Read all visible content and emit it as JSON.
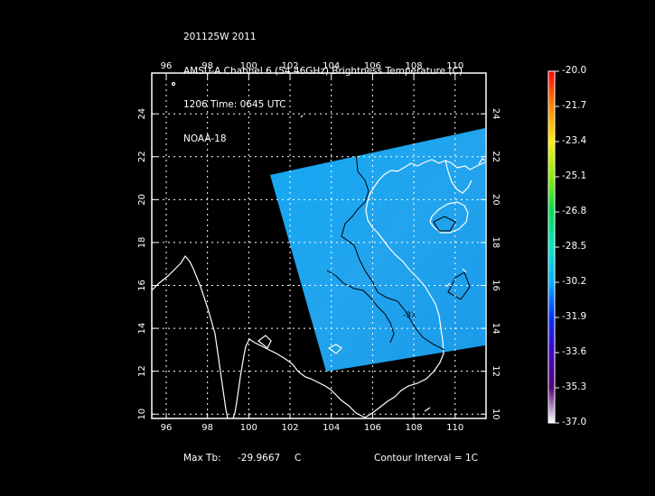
{
  "header": {
    "line1": "201125W 2011",
    "line2": "AMSU-A Channel 6 (54.46GHz) Brightness Temperature (C)",
    "line3": "1206 Time: 0645 UTC",
    "line4": "NOAA-18"
  },
  "map": {
    "lon_ticks": [
      "96",
      "98",
      "100",
      "102",
      "104",
      "106",
      "108",
      "110"
    ],
    "lat_ticks": [
      "24",
      "22",
      "20",
      "18",
      "16",
      "14",
      "12",
      "10"
    ],
    "lon_range": [
      95.3,
      111.5
    ],
    "lat_range": [
      9.8,
      25.9
    ],
    "contour_label": "-31",
    "swath_color": "#1fa6f0",
    "colors": {
      "coast": "#ffffff",
      "contour": "#000000",
      "frame": "#ffffff"
    }
  },
  "colorbar": {
    "labels": [
      "-20.0",
      "-21.7",
      "-23.4",
      "-25.1",
      "-26.8",
      "-28.5",
      "-30.2",
      "-31.9",
      "-33.6",
      "-35.3",
      "-37.0"
    ],
    "colors": [
      "#ff0000",
      "#ff8800",
      "#ffee00",
      "#88ee00",
      "#00dd55",
      "#00e8c8",
      "#00b0ff",
      "#0033ff",
      "#4400cc",
      "#550077",
      "#ffffff"
    ]
  },
  "footer": {
    "max_tb_label": "Max Tb:",
    "max_tb_value": "-29.9667",
    "max_tb_unit": "C",
    "contour_interval": "Contour Interval = 1C"
  }
}
